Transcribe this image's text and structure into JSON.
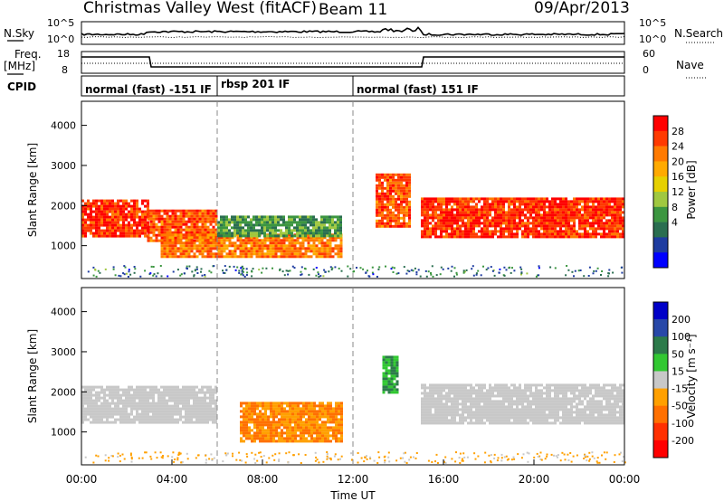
{
  "header": {
    "station": "Christmas Valley West (fitACF)",
    "beam": "Beam 11",
    "date": "09/Apr/2013"
  },
  "params": {
    "nsky_label": "N.Sky",
    "nsky_ticks": [
      "10^5",
      "10^0"
    ],
    "nsearch_label": "N.Search",
    "nsearch_ticks": [
      "10^5",
      "10^0"
    ],
    "freq_label_1": "Freq.",
    "freq_label_2": "[MHz]",
    "freq_ticks": [
      "18",
      "8"
    ],
    "nave_label": "Nave",
    "nave_ticks": [
      "60",
      "0"
    ],
    "cpid_label": "CPID"
  },
  "cpid_modes": [
    {
      "start": "00:00",
      "end": "06:00",
      "label": "normal (fast) -151 IF"
    },
    {
      "start": "06:00",
      "end": "12:00",
      "label": "rbsp 201 IF"
    },
    {
      "start": "12:00",
      "end": "24:00",
      "label": "normal (fast) 151 IF"
    }
  ],
  "axes": {
    "x_ticks": [
      "00:00",
      "04:00",
      "08:00",
      "12:00",
      "16:00",
      "20:00",
      "00:00"
    ],
    "xlabel": "Time UT",
    "ylabel": "Slant Range [km]",
    "y_ticks": [
      "4000",
      "3000",
      "2000",
      "1000"
    ]
  },
  "colorbars": {
    "power": {
      "label": "Power [dB]",
      "ticks": [
        "28",
        "24",
        "20",
        "16",
        "12",
        "8",
        "4"
      ],
      "colors": [
        "#ff0000",
        "#ff3a00",
        "#ff7a00",
        "#ffaa00",
        "#e6d000",
        "#a0c840",
        "#3c9640",
        "#2a6e50",
        "#1e3ca0",
        "#0000ff"
      ]
    },
    "velocity": {
      "label": "Velocity [m s⁻¹]",
      "ticks": [
        "200",
        "100",
        "50",
        "15",
        "-15",
        "-50",
        "-100",
        "-200"
      ],
      "colors": [
        "#0000c8",
        "#2848a8",
        "#2c7a4a",
        "#32c832",
        "#c8c8c8",
        "#ffa000",
        "#ff7000",
        "#ff3000",
        "#ff0000"
      ]
    }
  },
  "chart_data": [
    {
      "type": "heatmap",
      "panel": "power",
      "xlabel": "Time UT",
      "ylabel": "Slant Range [km]",
      "x_range_hours": [
        0,
        24
      ],
      "y_range_km": [
        180,
        4600
      ],
      "colorbar_label": "Power [dB]",
      "echo_regions": [
        {
          "t0": 0.0,
          "t1": 2.9,
          "r0": 1250,
          "r1": 2150,
          "power_db": 28
        },
        {
          "t0": 2.9,
          "t1": 6.0,
          "r0": 1100,
          "r1": 1900,
          "power_db": 26
        },
        {
          "t0": 3.5,
          "t1": 11.5,
          "r0": 700,
          "r1": 1300,
          "power_db": 24
        },
        {
          "t0": 6.0,
          "t1": 11.5,
          "r0": 1250,
          "r1": 1750,
          "power_db": 12
        },
        {
          "t0": 13.0,
          "t1": 14.5,
          "r0": 1500,
          "r1": 2800,
          "power_db": 26
        },
        {
          "t0": 15.0,
          "t1": 24.0,
          "r0": 1250,
          "r1": 2200,
          "power_db": 28
        }
      ]
    },
    {
      "type": "heatmap",
      "panel": "velocity",
      "xlabel": "Time UT",
      "ylabel": "Slant Range [km]",
      "x_range_hours": [
        0,
        24
      ],
      "y_range_km": [
        180,
        4600
      ],
      "colorbar_label": "Velocity [m s⁻¹]",
      "echo_regions": [
        {
          "t0": 0.0,
          "t1": 6.0,
          "r0": 1250,
          "r1": 2150,
          "velocity": 0
        },
        {
          "t0": 7.0,
          "t1": 11.5,
          "r0": 800,
          "r1": 1750,
          "velocity": -50
        },
        {
          "t0": 13.3,
          "t1": 14.0,
          "r0": 2000,
          "r1": 2900,
          "velocity": 50
        },
        {
          "t0": 15.0,
          "t1": 24.0,
          "r0": 1250,
          "r1": 2200,
          "velocity": 0
        }
      ]
    }
  ]
}
